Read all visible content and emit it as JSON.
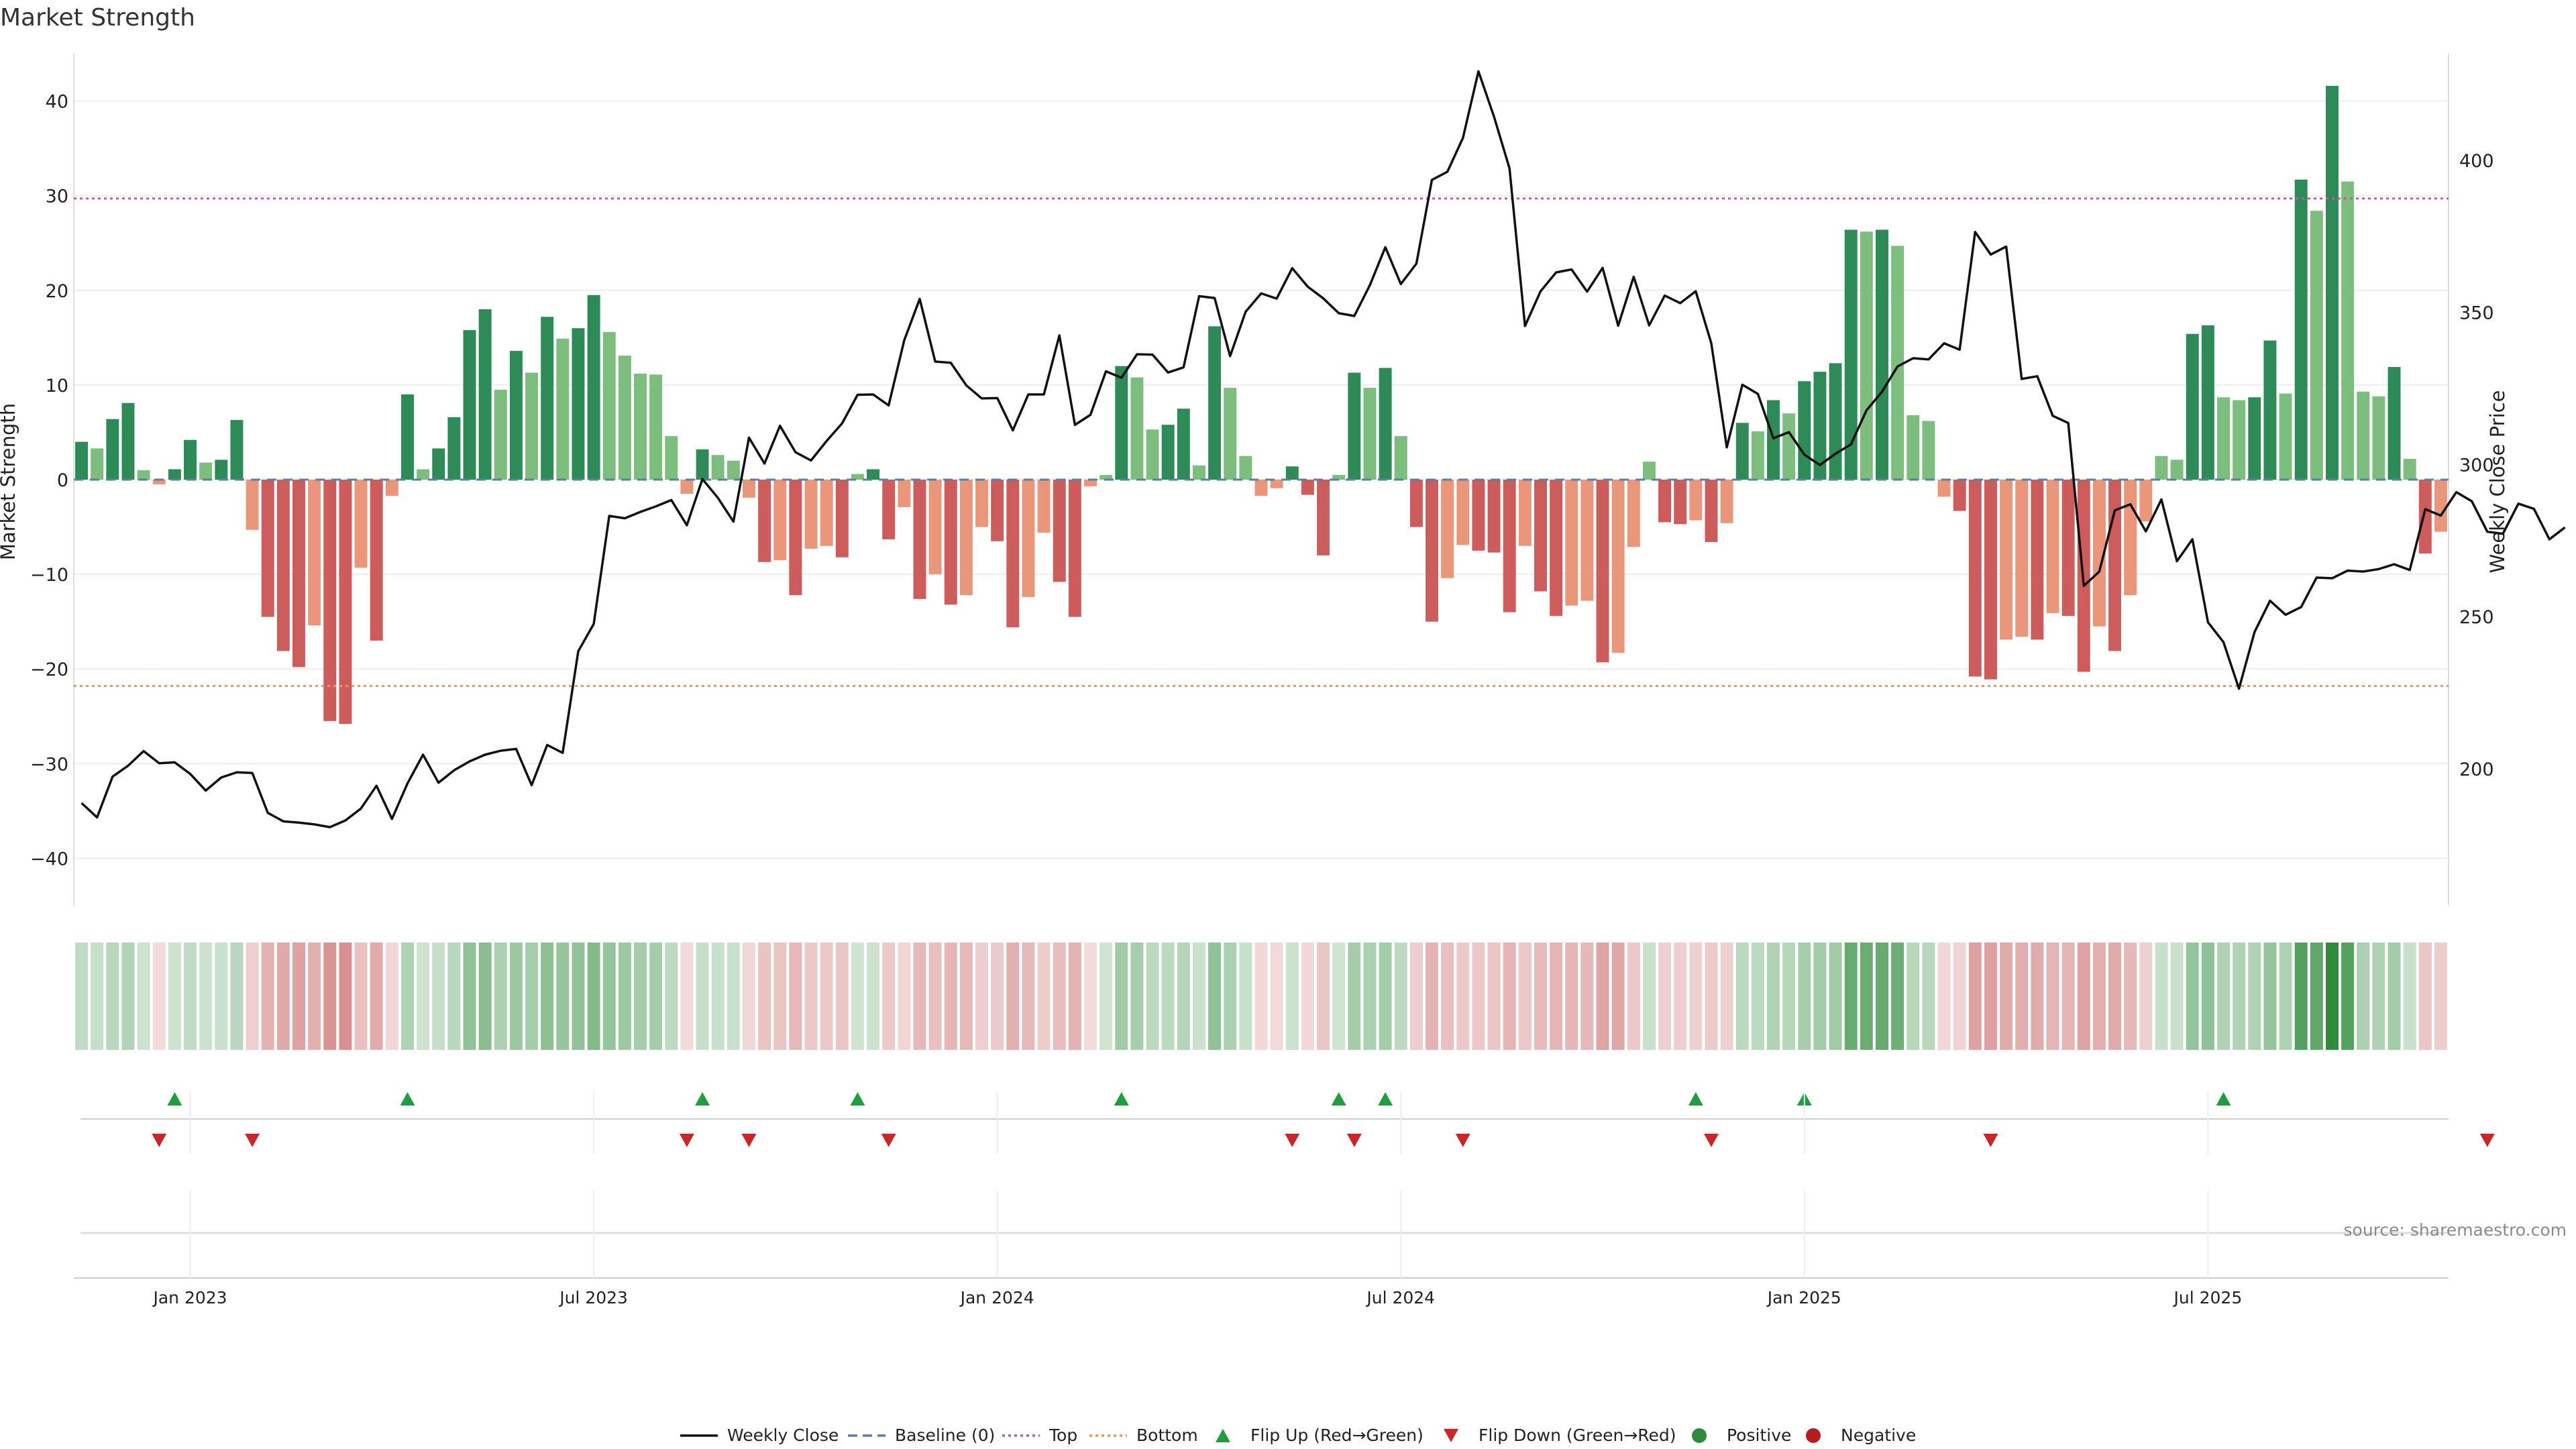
{
  "chart_data": {
    "type": "bar",
    "title": "Market Strength",
    "ylabel": "Market Strength",
    "y2label": "Weekly Close Price",
    "ylim": [
      -45,
      45
    ],
    "y2lim": [
      155,
      435
    ],
    "yticks": [
      40,
      30,
      20,
      10,
      0,
      -10,
      -20,
      -30,
      -40
    ],
    "ytick_labels": [
      "40",
      "30",
      "20",
      "10",
      "0",
      "−10",
      "−20",
      "−30",
      "−40"
    ],
    "y2ticks": [
      400,
      350,
      300,
      250,
      200
    ],
    "y2tick_labels": [
      "400",
      "350",
      "300",
      "250",
      "200"
    ],
    "xticks": [
      {
        "label": "Jan 2023",
        "index": 7
      },
      {
        "label": "Jul 2023",
        "index": 33
      },
      {
        "label": "Jan 2024",
        "index": 59
      },
      {
        "label": "Jul 2024",
        "index": 85
      },
      {
        "label": "Jan 2025",
        "index": 111
      },
      {
        "label": "Jul 2025",
        "index": 137
      }
    ],
    "grid": true,
    "legend_position": "bottom-center",
    "source": "source: sharemaestro.com",
    "levels": {
      "top": 29.7,
      "bottom": -21.8,
      "baseline": 0
    },
    "strength": [
      4,
      3.3,
      6.4,
      8.1,
      1,
      -0.5,
      1.1,
      4.2,
      1.8,
      2.1,
      6.3,
      -5.3,
      -14.5,
      -18.1,
      -19.8,
      -15.4,
      -25.5,
      -25.8,
      -9.3,
      -17,
      -1.7,
      9,
      1.1,
      3.3,
      6.6,
      15.8,
      18,
      9.5,
      13.6,
      11.3,
      17.2,
      14.9,
      16,
      19.5,
      15.6,
      13.1,
      11.2,
      11.1,
      4.6,
      -1.5,
      3.2,
      2.6,
      2,
      -1.9,
      -8.7,
      -8.5,
      -12.2,
      -7.3,
      -7,
      -8.2,
      0.6,
      1.1,
      -6.3,
      -2.9,
      -12.6,
      -10,
      -13.2,
      -12.2,
      -5,
      -6.5,
      -15.6,
      -12.4,
      -5.6,
      -10.8,
      -14.5,
      -0.7,
      0.5,
      12,
      10.8,
      5.3,
      5.8,
      7.5,
      1.5,
      16.2,
      9.7,
      2.5,
      -1.7,
      -0.9,
      1.4,
      -1.6,
      -8,
      0.5,
      11.3,
      9.7,
      11.8,
      4.6,
      -5,
      -15,
      -10.4,
      -6.9,
      -7.5,
      -7.7,
      -14,
      -7,
      -11.8,
      -14.4,
      -13.3,
      -12.8,
      -19.3,
      -18.3,
      -7.1,
      1.9,
      -4.5,
      -4.7,
      -4.3,
      -6.6,
      -4.6,
      6,
      5.1,
      8.4,
      7,
      10.4,
      11.4,
      12.3,
      26.4,
      26.2,
      26.4,
      24.7,
      6.8,
      6.2,
      -1.8,
      -3.3,
      -20.8,
      -21.1,
      -16.9,
      -16.6,
      -16.9,
      -14.1,
      -14.4,
      -20.3,
      -15.5,
      -18.1,
      -12.2,
      -4.4,
      2.5,
      2.1,
      15.4,
      16.3,
      8.7,
      8.4,
      8.7,
      14.7,
      9.1,
      31.7,
      28.4,
      41.6,
      31.5,
      9.3,
      8.8,
      11.9,
      2.2,
      -7.8,
      -5.5
    ],
    "weekly_close": [
      188.7,
      184,
      197.4,
      201,
      205.8,
      201.8,
      202.1,
      198.3,
      192.8,
      197.1,
      198.8,
      198.6,
      185.5,
      182.7,
      182.3,
      181.7,
      180.8,
      183,
      186.9,
      194.4,
      183.5,
      195.2,
      204.6,
      195.4,
      199.5,
      202.4,
      204.6,
      205.9,
      206.5,
      194.6,
      207.8,
      205.2,
      238.6,
      247.6,
      283.1,
      282.3,
      284.4,
      286.2,
      288.3,
      280,
      295.2,
      289,
      281.2,
      308.8,
      300.3,
      312.7,
      304,
      301.3,
      307.7,
      313.5,
      322.9,
      323,
      319.4,
      340.7,
      354.4,
      333.8,
      333.4,
      326,
      321.7,
      321.8,
      311.2,
      323,
      323,
      342.4,
      313,
      316.3,
      330.6,
      328.5,
      336.2,
      336.1,
      330.2,
      331.9,
      355.3,
      354.7,
      335.6,
      350.2,
      356.2,
      354.5,
      364.5,
      358.4,
      354.6,
      349.7,
      348.8,
      358.9,
      371.4,
      359.3,
      366,
      393.5,
      396.2,
      407.3,
      429.2,
      414.3,
      397.3,
      345.5,
      356.9,
      363.1,
      364.1,
      356.8,
      364.6,
      345.6,
      361.7,
      345.7,
      355.5,
      353,
      356.9,
      339.8,
      305.6,
      326.2,
      323.2,
      308.6,
      310.6,
      303.2,
      299.8,
      303.5,
      306.6,
      317.8,
      323.9,
      332.2,
      334.9,
      334.5,
      339.8,
      337.7,
      376.4,
      369,
      371.6,
      328.1,
      329,
      316,
      313.6,
      260.1,
      264.8,
      284.9,
      286.9,
      278,
      288.5,
      268.2,
      275.4,
      248.1,
      241.6,
      226.3,
      244.9,
      255.2,
      250.6,
      253.1,
      262.8,
      262.6,
      265.1,
      264.8,
      265.6,
      267.2,
      265.3,
      285.3,
      283.2,
      290.9,
      287.9,
      277.9,
      277.2,
      287.1,
      285.4,
      275.4,
      279.3
    ],
    "flip_up_indices": [
      6,
      21,
      40,
      50,
      67,
      81,
      84,
      104,
      111,
      138
    ],
    "flip_down_indices": [
      5,
      11,
      39,
      43,
      52,
      78,
      82,
      89,
      105,
      123,
      155
    ],
    "legend": [
      {
        "label": "Weekly Close",
        "kind": "line-solid",
        "color": "#111111"
      },
      {
        "label": "Baseline (0)",
        "kind": "line-dash",
        "color": "#5b7fa6"
      },
      {
        "label": "Top",
        "kind": "line-dot",
        "color": "#b05fb5"
      },
      {
        "label": "Bottom",
        "kind": "line-dot",
        "color": "#e8975b"
      },
      {
        "label": "Flip Up (Red→Green)",
        "kind": "tri-up",
        "color": "#1f9d3f"
      },
      {
        "label": "Flip Down (Green→Red)",
        "kind": "tri-down",
        "color": "#c62828"
      },
      {
        "label": "Positive",
        "kind": "dot",
        "color": "#2e8b3a"
      },
      {
        "label": "Negative",
        "kind": "dot",
        "color": "#b71c1c"
      }
    ],
    "colors": {
      "pos_strong": "#2e8b57",
      "pos_weak": "#7dbd7d",
      "neg_strong": "#cd5c5c",
      "neg_weak": "#e9967a",
      "close_line": "#111111",
      "top_line": "#b05fb5",
      "bottom_line": "#e8975b",
      "baseline": "#5b7fa6",
      "grid": "#ececec",
      "axis_text": "#222222",
      "source_text": "#8a8a8a"
    }
  }
}
